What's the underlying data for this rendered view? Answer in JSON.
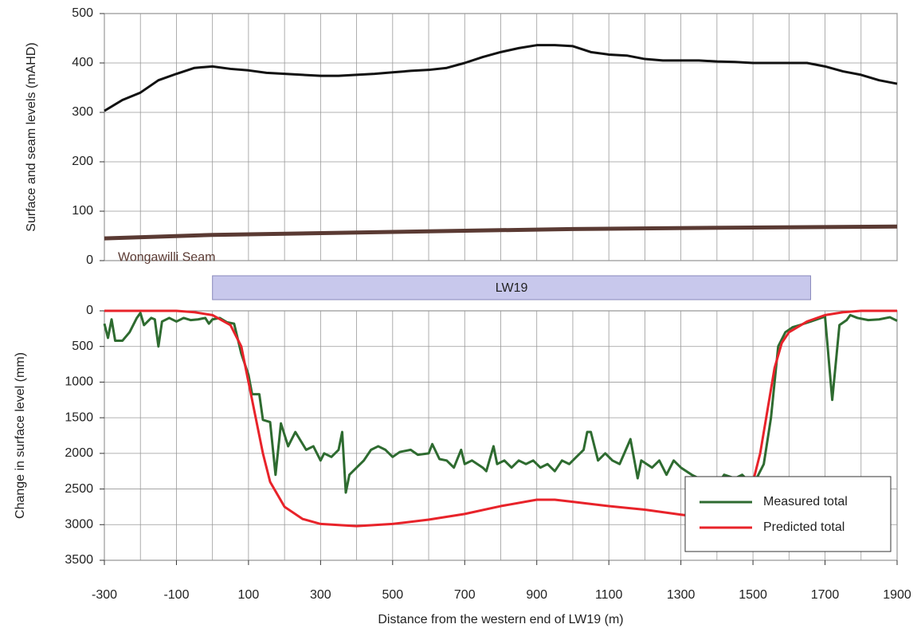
{
  "chart_data": [
    {
      "type": "line",
      "ylabel": "Surface and seam levels (mAHD)",
      "xlim": [
        -300,
        1900
      ],
      "ylim": [
        0,
        500
      ],
      "yticks": [
        0,
        100,
        200,
        300,
        400,
        500
      ],
      "xgrid": [
        -300,
        -200,
        -100,
        0,
        100,
        200,
        300,
        400,
        500,
        600,
        700,
        800,
        900,
        1000,
        1100,
        1200,
        1300,
        1400,
        1500,
        1600,
        1700,
        1800,
        1900
      ],
      "grid": true,
      "series": [
        {
          "color": "#111111",
          "x": [
            -300,
            -250,
            -200,
            -150,
            -100,
            -50,
            0,
            50,
            100,
            150,
            200,
            250,
            300,
            350,
            400,
            450,
            500,
            550,
            600,
            650,
            700,
            750,
            800,
            850,
            900,
            950,
            1000,
            1050,
            1100,
            1150,
            1200,
            1250,
            1300,
            1350,
            1400,
            1450,
            1500,
            1550,
            1600,
            1650,
            1700,
            1750,
            1800,
            1850,
            1900
          ],
          "values": [
            303,
            325,
            340,
            365,
            378,
            390,
            393,
            388,
            385,
            380,
            378,
            376,
            374,
            374,
            376,
            378,
            381,
            384,
            386,
            390,
            400,
            412,
            422,
            430,
            436,
            436,
            434,
            422,
            417,
            415,
            408,
            405,
            405,
            405,
            403,
            402,
            400,
            400,
            400,
            400,
            393,
            383,
            376,
            365,
            358
          ]
        },
        {
          "name": "Wongawilli Seam",
          "color": "#5a3a33",
          "x": [
            -300,
            0,
            500,
            1000,
            1500,
            1900
          ],
          "values": [
            45,
            52,
            58,
            64,
            67,
            69
          ]
        }
      ]
    },
    {
      "type": "line",
      "ylabel": "Change in surface level (mm)",
      "xlabel": "Distance from the western end of LW19 (m)",
      "xlim": [
        -300,
        1900
      ],
      "xticks": [
        -300,
        -100,
        100,
        300,
        500,
        700,
        900,
        1100,
        1300,
        1500,
        1700,
        1900
      ],
      "xgrid": [
        -300,
        -200,
        -100,
        0,
        100,
        200,
        300,
        400,
        500,
        600,
        700,
        800,
        900,
        1000,
        1100,
        1200,
        1300,
        1400,
        1500,
        1600,
        1700,
        1800,
        1900
      ],
      "ylim": [
        0,
        3500
      ],
      "y_inverted": true,
      "yticks": [
        0,
        500,
        1000,
        1500,
        2000,
        2500,
        3000,
        3500
      ],
      "grid": true,
      "legend": "lower right",
      "annotations": [
        {
          "label": "LW19",
          "x": [
            0,
            1660
          ]
        }
      ],
      "series": [
        {
          "name": "Measured total",
          "color": "#2e6b30",
          "x": [
            -300,
            -290,
            -280,
            -270,
            -250,
            -230,
            -210,
            -200,
            -190,
            -170,
            -160,
            -150,
            -140,
            -120,
            -100,
            -80,
            -60,
            -40,
            -20,
            -10,
            0,
            20,
            40,
            60,
            80,
            100,
            110,
            130,
            140,
            160,
            175,
            190,
            210,
            230,
            260,
            280,
            300,
            310,
            330,
            350,
            360,
            370,
            380,
            400,
            420,
            440,
            460,
            480,
            500,
            520,
            550,
            570,
            600,
            610,
            630,
            650,
            670,
            690,
            700,
            720,
            750,
            760,
            780,
            790,
            810,
            830,
            850,
            870,
            890,
            910,
            930,
            950,
            970,
            990,
            1010,
            1030,
            1040,
            1050,
            1070,
            1090,
            1110,
            1130,
            1160,
            1180,
            1190,
            1220,
            1240,
            1260,
            1280,
            1300,
            1330,
            1350,
            1380,
            1400,
            1420,
            1450,
            1470,
            1490,
            1510,
            1530,
            1550,
            1570,
            1590,
            1610,
            1630,
            1660,
            1700,
            1720,
            1740,
            1760,
            1770,
            1790,
            1820,
            1850,
            1880,
            1900
          ],
          "values": [
            180,
            380,
            120,
            420,
            420,
            300,
            100,
            30,
            200,
            100,
            120,
            500,
            150,
            100,
            150,
            100,
            130,
            120,
            100,
            180,
            120,
            100,
            160,
            180,
            600,
            900,
            1170,
            1170,
            1530,
            1560,
            2300,
            1580,
            1900,
            1700,
            1950,
            1900,
            2100,
            2000,
            2050,
            1950,
            1700,
            2550,
            2300,
            2200,
            2100,
            1950,
            1900,
            1950,
            2050,
            1980,
            1950,
            2020,
            2000,
            1870,
            2080,
            2100,
            2200,
            1950,
            2150,
            2100,
            2200,
            2250,
            1900,
            2150,
            2100,
            2200,
            2100,
            2150,
            2100,
            2200,
            2150,
            2250,
            2100,
            2150,
            2050,
            1950,
            1700,
            1700,
            2100,
            2000,
            2100,
            2150,
            1800,
            2350,
            2100,
            2200,
            2100,
            2300,
            2100,
            2200,
            2300,
            2350,
            2400,
            2450,
            2300,
            2350,
            2300,
            2400,
            2350,
            2150,
            1500,
            500,
            300,
            230,
            200,
            150,
            80,
            1250,
            200,
            130,
            60,
            100,
            130,
            120,
            90,
            140
          ]
        },
        {
          "name": "Predicted total",
          "color": "#e8232a",
          "x": [
            -300,
            -200,
            -100,
            -50,
            0,
            50,
            80,
            100,
            120,
            140,
            160,
            200,
            250,
            300,
            400,
            500,
            600,
            700,
            800,
            900,
            950,
            1000,
            1100,
            1200,
            1300,
            1350,
            1400,
            1450,
            1480,
            1500,
            1520,
            1540,
            1560,
            1580,
            1600,
            1650,
            1700,
            1750,
            1800,
            1900
          ],
          "values": [
            0,
            0,
            0,
            20,
            60,
            200,
            500,
            1000,
            1500,
            2000,
            2400,
            2750,
            2920,
            2990,
            3020,
            2990,
            2930,
            2850,
            2740,
            2650,
            2650,
            2680,
            2740,
            2790,
            2860,
            2890,
            2900,
            2820,
            2600,
            2400,
            2000,
            1400,
            800,
            450,
            300,
            150,
            60,
            20,
            0,
            0
          ]
        }
      ]
    }
  ]
}
